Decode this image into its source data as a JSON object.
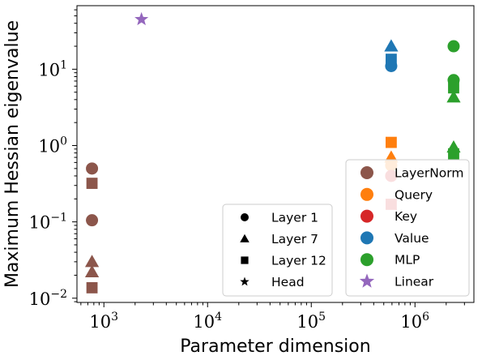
{
  "chart_data": {
    "type": "scatter",
    "xlabel": "Parameter dimension",
    "ylabel": "Maximum Hessian eigenvalue",
    "x_scale": "log",
    "y_scale": "log",
    "xlim": [
      550,
      3700000
    ],
    "ylim": [
      0.0088,
      68
    ],
    "x_ticks": [
      {
        "base": "10",
        "exp": "3",
        "value": 1000
      },
      {
        "base": "10",
        "exp": "4",
        "value": 10000
      },
      {
        "base": "10",
        "exp": "5",
        "value": 100000
      },
      {
        "base": "10",
        "exp": "6",
        "value": 1000000
      }
    ],
    "y_ticks": [
      {
        "base": "10",
        "exp": "−2",
        "value": 0.01
      },
      {
        "base": "10",
        "exp": "−1",
        "value": 0.1
      },
      {
        "base": "10",
        "exp": "0",
        "value": 1
      },
      {
        "base": "10",
        "exp": "1",
        "value": 10
      }
    ],
    "grid": false,
    "colors": {
      "LayerNorm": "#8c564b",
      "Query": "#ff7f0e",
      "Key": "#d62728",
      "Value": "#1f77b4",
      "MLP": "#2ca02c",
      "Linear": "#9467bd"
    },
    "marker_legend": [
      {
        "marker": "circle",
        "label": "Layer 1"
      },
      {
        "marker": "triangle",
        "label": "Layer 7"
      },
      {
        "marker": "square",
        "label": "Layer 12"
      },
      {
        "marker": "star",
        "label": "Head"
      }
    ],
    "color_legend": [
      {
        "name": "LayerNorm",
        "marker": "circle"
      },
      {
        "name": "Query",
        "marker": "circle"
      },
      {
        "name": "Key",
        "marker": "circle"
      },
      {
        "name": "Value",
        "marker": "circle"
      },
      {
        "name": "MLP",
        "marker": "circle"
      },
      {
        "name": "Linear",
        "marker": "star"
      }
    ],
    "points": [
      {
        "group": "LayerNorm",
        "marker": "circle",
        "x": 768,
        "y": 0.5
      },
      {
        "group": "LayerNorm",
        "marker": "circle",
        "x": 768,
        "y": 0.105
      },
      {
        "group": "LayerNorm",
        "marker": "square",
        "x": 768,
        "y": 0.32
      },
      {
        "group": "LayerNorm",
        "marker": "triangle",
        "x": 768,
        "y": 0.03
      },
      {
        "group": "LayerNorm",
        "marker": "triangle",
        "x": 768,
        "y": 0.022
      },
      {
        "group": "LayerNorm",
        "marker": "square",
        "x": 768,
        "y": 0.0137
      },
      {
        "group": "Linear",
        "marker": "star",
        "x": 2304,
        "y": 45
      },
      {
        "group": "Query",
        "marker": "square",
        "x": 589824,
        "y": 1.1
      },
      {
        "group": "Query",
        "marker": "triangle",
        "x": 589824,
        "y": 0.7
      },
      {
        "group": "Query",
        "marker": "circle",
        "x": 589824,
        "y": 0.55
      },
      {
        "group": "Key",
        "marker": "circle",
        "x": 589824,
        "y": 0.4
      },
      {
        "group": "Key",
        "marker": "square",
        "x": 589824,
        "y": 0.17
      },
      {
        "group": "Value",
        "marker": "circle",
        "x": 589824,
        "y": 11
      },
      {
        "group": "Value",
        "marker": "square",
        "x": 589824,
        "y": 13.5
      },
      {
        "group": "Value",
        "marker": "triangle",
        "x": 589824,
        "y": 20
      },
      {
        "group": "MLP",
        "marker": "circle",
        "x": 2359296,
        "y": 20
      },
      {
        "group": "MLP",
        "marker": "circle",
        "x": 2359296,
        "y": 7.2
      },
      {
        "group": "MLP",
        "marker": "square",
        "x": 2359296,
        "y": 5.7
      },
      {
        "group": "MLP",
        "marker": "triangle",
        "x": 2359296,
        "y": 4.3
      },
      {
        "group": "MLP",
        "marker": "triangle",
        "x": 2359296,
        "y": 0.95
      },
      {
        "group": "MLP",
        "marker": "square",
        "x": 2359296,
        "y": 0.78
      }
    ]
  }
}
